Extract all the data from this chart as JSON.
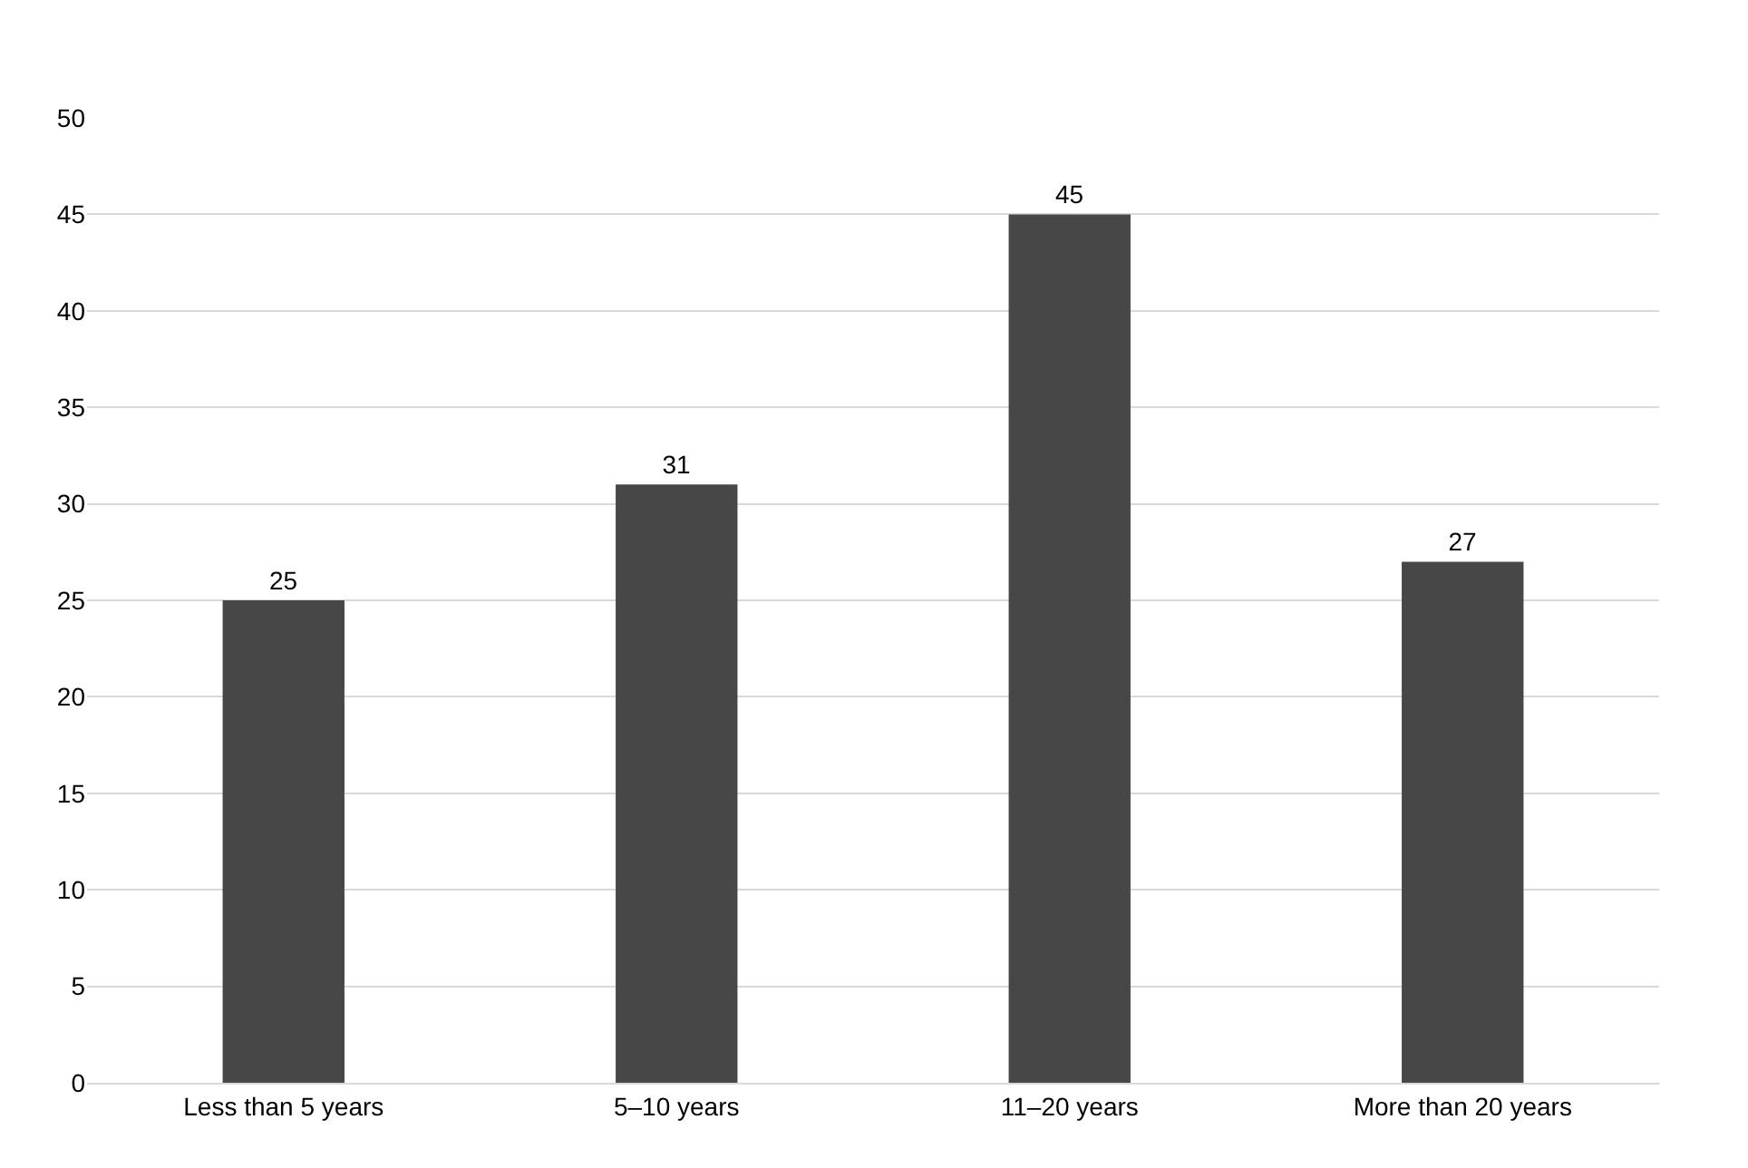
{
  "chart_data": {
    "type": "bar",
    "categories": [
      "Less than 5 years",
      "5–10 years",
      "11–20 years",
      "More than 20 years"
    ],
    "values": [
      25,
      31,
      45,
      27
    ],
    "color": "#474747",
    "ylim": [
      0,
      50
    ],
    "yticks": [
      0,
      5,
      10,
      15,
      20,
      25,
      30,
      35,
      40,
      45,
      50
    ],
    "grid": "y",
    "data_labels": true,
    "legend": false
  }
}
